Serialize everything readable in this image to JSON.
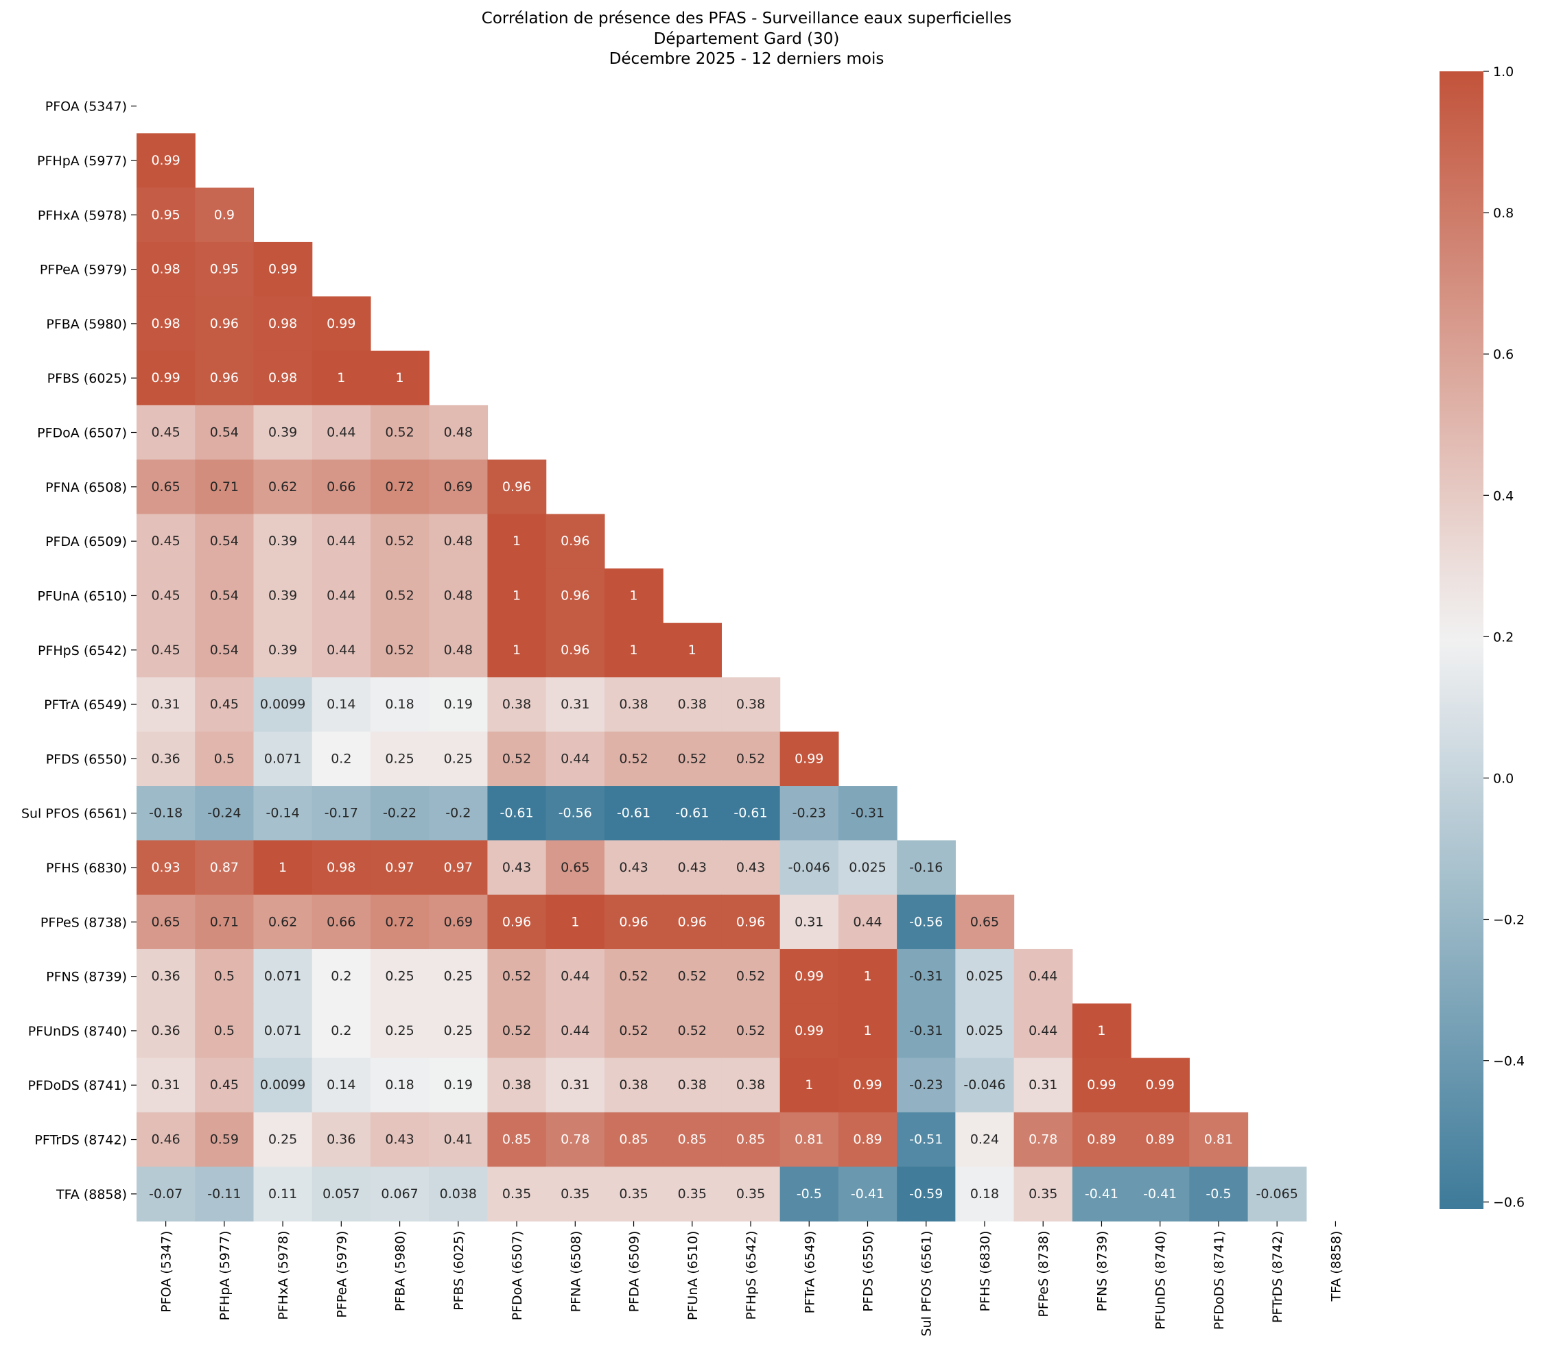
{
  "chart_data": {
    "type": "heatmap",
    "title_lines": [
      "Corrélation de présence des PFAS - Surveillance eaux superficielles",
      "Département Gard (30)",
      "Décembre 2025 - 12 derniers mois"
    ],
    "labels": [
      "PFOA (5347)",
      "PFHpA (5977)",
      "PFHxA (5978)",
      "PFPeA (5979)",
      "PFBA (5980)",
      "PFBS (6025)",
      "PFDoA (6507)",
      "PFNA (6508)",
      "PFDA (6509)",
      "PFUnA (6510)",
      "PFHpS (6542)",
      "PFTrA (6549)",
      "PFDS (6550)",
      "Sul PFOS (6561)",
      "PFHS (6830)",
      "PFPeS (8738)",
      "PFNS (8739)",
      "PFUnDS (8740)",
      "PFDoDS (8741)",
      "PFTrDS (8742)",
      "TFA (8858)"
    ],
    "lower_triangle": [
      [],
      [
        "0.99"
      ],
      [
        "0.95",
        "0.9"
      ],
      [
        "0.98",
        "0.95",
        "0.99"
      ],
      [
        "0.98",
        "0.96",
        "0.98",
        "0.99"
      ],
      [
        "0.99",
        "0.96",
        "0.98",
        "1",
        "1"
      ],
      [
        "0.45",
        "0.54",
        "0.39",
        "0.44",
        "0.52",
        "0.48"
      ],
      [
        "0.65",
        "0.71",
        "0.62",
        "0.66",
        "0.72",
        "0.69",
        "0.96"
      ],
      [
        "0.45",
        "0.54",
        "0.39",
        "0.44",
        "0.52",
        "0.48",
        "1",
        "0.96"
      ],
      [
        "0.45",
        "0.54",
        "0.39",
        "0.44",
        "0.52",
        "0.48",
        "1",
        "0.96",
        "1"
      ],
      [
        "0.45",
        "0.54",
        "0.39",
        "0.44",
        "0.52",
        "0.48",
        "1",
        "0.96",
        "1",
        "1"
      ],
      [
        "0.31",
        "0.45",
        "0.0099",
        "0.14",
        "0.18",
        "0.19",
        "0.38",
        "0.31",
        "0.38",
        "0.38",
        "0.38"
      ],
      [
        "0.36",
        "0.5",
        "0.071",
        "0.2",
        "0.25",
        "0.25",
        "0.52",
        "0.44",
        "0.52",
        "0.52",
        "0.52",
        "0.99"
      ],
      [
        "-0.18",
        "-0.24",
        "-0.14",
        "-0.17",
        "-0.22",
        "-0.2",
        "-0.61",
        "-0.56",
        "-0.61",
        "-0.61",
        "-0.61",
        "-0.23",
        "-0.31"
      ],
      [
        "0.93",
        "0.87",
        "1",
        "0.98",
        "0.97",
        "0.97",
        "0.43",
        "0.65",
        "0.43",
        "0.43",
        "0.43",
        "-0.046",
        "0.025",
        "-0.16"
      ],
      [
        "0.65",
        "0.71",
        "0.62",
        "0.66",
        "0.72",
        "0.69",
        "0.96",
        "1",
        "0.96",
        "0.96",
        "0.96",
        "0.31",
        "0.44",
        "-0.56",
        "0.65"
      ],
      [
        "0.36",
        "0.5",
        "0.071",
        "0.2",
        "0.25",
        "0.25",
        "0.52",
        "0.44",
        "0.52",
        "0.52",
        "0.52",
        "0.99",
        "1",
        "-0.31",
        "0.025",
        "0.44"
      ],
      [
        "0.36",
        "0.5",
        "0.071",
        "0.2",
        "0.25",
        "0.25",
        "0.52",
        "0.44",
        "0.52",
        "0.52",
        "0.52",
        "0.99",
        "1",
        "-0.31",
        "0.025",
        "0.44",
        "1"
      ],
      [
        "0.31",
        "0.45",
        "0.0099",
        "0.14",
        "0.18",
        "0.19",
        "0.38",
        "0.31",
        "0.38",
        "0.38",
        "0.38",
        "1",
        "0.99",
        "-0.23",
        "-0.046",
        "0.31",
        "0.99",
        "0.99"
      ],
      [
        "0.46",
        "0.59",
        "0.25",
        "0.36",
        "0.43",
        "0.41",
        "0.85",
        "0.78",
        "0.85",
        "0.85",
        "0.85",
        "0.81",
        "0.89",
        "-0.51",
        "0.24",
        "0.78",
        "0.89",
        "0.89",
        "0.81"
      ],
      [
        "-0.07",
        "-0.11",
        "0.11",
        "0.057",
        "0.067",
        "0.038",
        "0.35",
        "0.35",
        "0.35",
        "0.35",
        "0.35",
        "-0.5",
        "-0.41",
        "-0.59",
        "0.18",
        "0.35",
        "-0.41",
        "-0.41",
        "-0.5",
        "-0.065"
      ]
    ],
    "colorbar": {
      "vmin": -0.61,
      "vmax": 1.0,
      "center": 0.2,
      "ticks": [
        "−0.6",
        "−0.4",
        "−0.2",
        "0.0",
        "0.2",
        "0.4",
        "0.6",
        "0.8",
        "1.0"
      ],
      "tick_values": [
        -0.6,
        -0.4,
        -0.2,
        0.0,
        0.2,
        0.4,
        0.6,
        0.8,
        1.0
      ],
      "colormap": "diverging blue-white-red",
      "color_low": "#3d7a99",
      "color_mid": "#f2f2f2",
      "color_high": "#c2533a"
    },
    "mask": "upper triangle including diagonal"
  }
}
